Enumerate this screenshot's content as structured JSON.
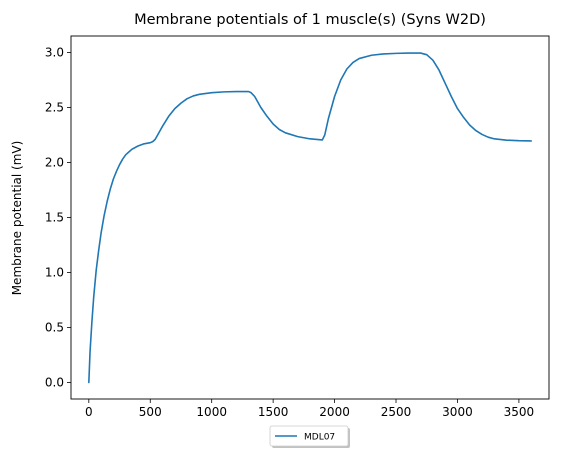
{
  "chart_data": {
    "type": "line",
    "title": "Membrane potentials of 1 muscle(s) (Syns W2D)",
    "xlabel": "",
    "ylabel": "Membrane potential (mV)",
    "xlim": [
      -145,
      3745
    ],
    "ylim": [
      -0.15,
      3.15
    ],
    "xticks": [
      0,
      500,
      1000,
      1500,
      2000,
      2500,
      3000,
      3500
    ],
    "yticks": [
      0.0,
      0.5,
      1.0,
      1.5,
      2.0,
      2.5,
      3.0
    ],
    "xtick_labels": [
      "0",
      "500",
      "1000",
      "1500",
      "2000",
      "2500",
      "3000",
      "3500"
    ],
    "ytick_labels": [
      "0.0",
      "0.5",
      "1.0",
      "1.5",
      "2.0",
      "2.5",
      "3.0"
    ],
    "grid": false,
    "legend_position": "below-center",
    "series": [
      {
        "name": "MDL07",
        "color": "#1f77b4",
        "points": [
          [
            0,
            0.0
          ],
          [
            10,
            0.28
          ],
          [
            25,
            0.55
          ],
          [
            40,
            0.78
          ],
          [
            60,
            1.02
          ],
          [
            80,
            1.2
          ],
          [
            100,
            1.36
          ],
          [
            125,
            1.52
          ],
          [
            150,
            1.65
          ],
          [
            175,
            1.76
          ],
          [
            200,
            1.85
          ],
          [
            225,
            1.92
          ],
          [
            250,
            1.98
          ],
          [
            275,
            2.03
          ],
          [
            300,
            2.07
          ],
          [
            350,
            2.12
          ],
          [
            400,
            2.15
          ],
          [
            450,
            2.17
          ],
          [
            500,
            2.18
          ],
          [
            520,
            2.19
          ],
          [
            540,
            2.21
          ],
          [
            560,
            2.25
          ],
          [
            600,
            2.33
          ],
          [
            650,
            2.42
          ],
          [
            700,
            2.49
          ],
          [
            750,
            2.54
          ],
          [
            800,
            2.58
          ],
          [
            850,
            2.605
          ],
          [
            900,
            2.62
          ],
          [
            1000,
            2.635
          ],
          [
            1100,
            2.642
          ],
          [
            1200,
            2.645
          ],
          [
            1300,
            2.645
          ],
          [
            1320,
            2.635
          ],
          [
            1350,
            2.6
          ],
          [
            1400,
            2.5
          ],
          [
            1450,
            2.42
          ],
          [
            1500,
            2.35
          ],
          [
            1550,
            2.3
          ],
          [
            1600,
            2.27
          ],
          [
            1700,
            2.235
          ],
          [
            1800,
            2.215
          ],
          [
            1900,
            2.205
          ],
          [
            1920,
            2.25
          ],
          [
            1950,
            2.4
          ],
          [
            2000,
            2.6
          ],
          [
            2050,
            2.75
          ],
          [
            2100,
            2.85
          ],
          [
            2150,
            2.91
          ],
          [
            2200,
            2.945
          ],
          [
            2300,
            2.975
          ],
          [
            2400,
            2.987
          ],
          [
            2500,
            2.992
          ],
          [
            2600,
            2.995
          ],
          [
            2700,
            2.995
          ],
          [
            2750,
            2.98
          ],
          [
            2800,
            2.93
          ],
          [
            2850,
            2.84
          ],
          [
            2900,
            2.72
          ],
          [
            2950,
            2.6
          ],
          [
            3000,
            2.49
          ],
          [
            3050,
            2.41
          ],
          [
            3100,
            2.34
          ],
          [
            3150,
            2.29
          ],
          [
            3200,
            2.255
          ],
          [
            3250,
            2.23
          ],
          [
            3300,
            2.215
          ],
          [
            3400,
            2.203
          ],
          [
            3500,
            2.198
          ],
          [
            3600,
            2.196
          ]
        ]
      }
    ]
  }
}
